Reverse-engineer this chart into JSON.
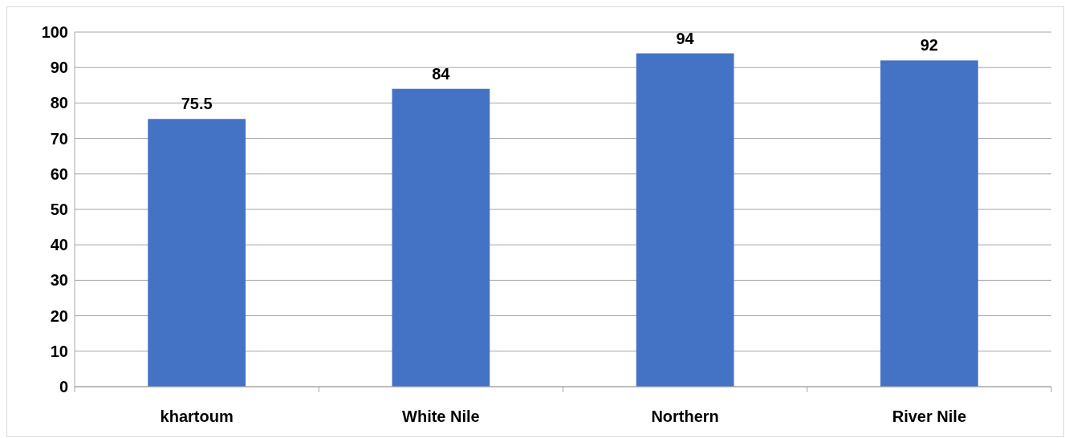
{
  "chart_data": {
    "type": "bar",
    "categories": [
      "khartoum",
      "White Nile",
      "Northern",
      "River Nile"
    ],
    "values": [
      75.5,
      84,
      94,
      92
    ],
    "color": "#4472c4",
    "ylim": [
      0,
      100
    ],
    "yticks": [
      0,
      10,
      20,
      30,
      40,
      50,
      60,
      70,
      80,
      90,
      100
    ],
    "grid": "y",
    "data_labels": true
  }
}
